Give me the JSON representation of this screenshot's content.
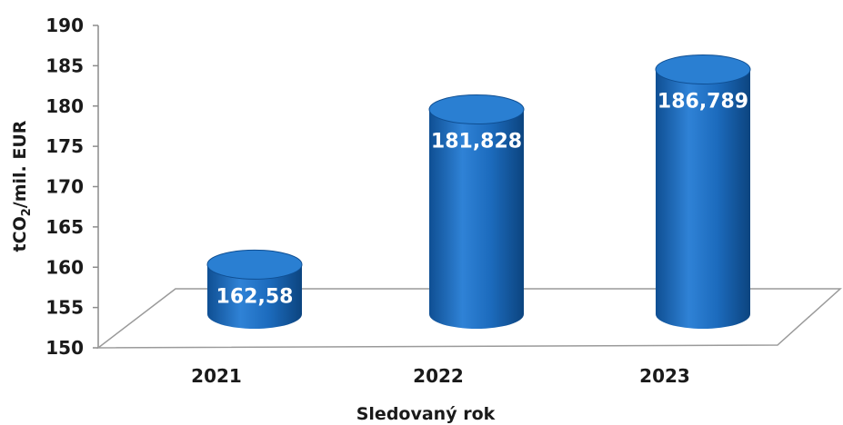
{
  "chart_data": {
    "type": "bar",
    "bar_shape": "cylinder",
    "categories": [
      "2021",
      "2022",
      "2023"
    ],
    "values": [
      162.58,
      181.828,
      186.789
    ],
    "data_labels": [
      "162,58",
      "181,828",
      "186,789"
    ],
    "xlabel": "Sledovaný rok",
    "ylabel": {
      "pre": "tCO",
      "sub": "2",
      "post": "/mil. EUR"
    },
    "ylim": [
      150,
      190
    ],
    "yticks": [
      "150",
      "155",
      "160",
      "165",
      "170",
      "175",
      "180",
      "185",
      "190"
    ],
    "grid": false,
    "bar_color": "#1f6fbf",
    "bar_top_color": "#2a7fd2"
  }
}
